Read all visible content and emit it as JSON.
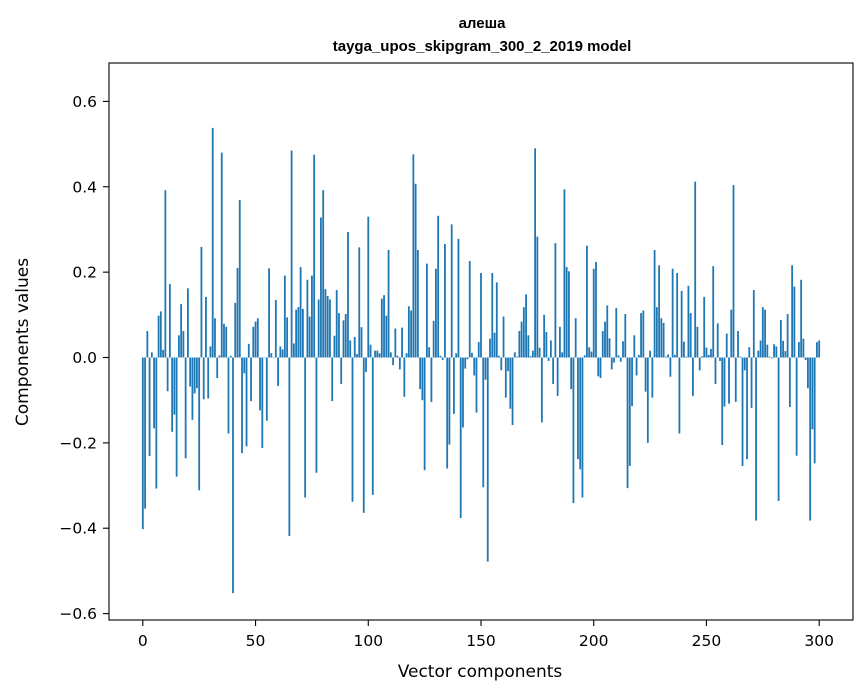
{
  "chart_data": {
    "type": "bar",
    "title": "алеша",
    "subtitle": "tayga_upos_skipgram_300_2_2019 model",
    "xlabel": "Vector components",
    "ylabel": "Components values",
    "xlim": [
      -15,
      315
    ],
    "ylim": [
      -0.615,
      0.69
    ],
    "x_ticks": [
      0,
      50,
      100,
      150,
      200,
      250,
      300
    ],
    "x_tick_labels": [
      "0",
      "50",
      "100",
      "150",
      "200",
      "250",
      "300"
    ],
    "y_ticks": [
      -0.6,
      -0.4,
      -0.2,
      0.0,
      0.2,
      0.4,
      0.6
    ],
    "y_tick_labels": [
      "−0.6",
      "−0.4",
      "−0.2",
      "0.0",
      "0.2",
      "0.4",
      "0.6"
    ],
    "grid": false,
    "color": "#1f77b4",
    "values": [
      -0.402,
      -0.354,
      0.062,
      -0.231,
      0.012,
      -0.166,
      -0.307,
      0.098,
      0.108,
      0.018,
      0.392,
      -0.079,
      0.172,
      -0.174,
      -0.134,
      -0.279,
      0.052,
      0.125,
      0.062,
      -0.236,
      0.162,
      -0.068,
      -0.146,
      -0.084,
      -0.072,
      -0.311,
      0.259,
      -0.098,
      0.142,
      -0.096,
      0.026,
      0.538,
      0.092,
      -0.048,
      0.005,
      0.48,
      0.079,
      0.072,
      -0.178,
      0.004,
      -0.552,
      0.128,
      0.21,
      0.369,
      -0.224,
      -0.037,
      -0.208,
      0.032,
      -0.102,
      0.072,
      0.084,
      0.092,
      -0.124,
      -0.212,
      0.001,
      -0.148,
      0.209,
      0.01,
      0.001,
      0.135,
      -0.067,
      0.026,
      0.019,
      0.192,
      0.094,
      -0.418,
      0.485,
      0.033,
      0.112,
      0.118,
      0.212,
      0.114,
      -0.328,
      0.182,
      0.096,
      0.192,
      0.475,
      -0.27,
      0.136,
      0.328,
      0.392,
      0.16,
      0.144,
      0.136,
      -0.102,
      0.051,
      0.158,
      0.104,
      -0.062,
      0.087,
      0.102,
      0.294,
      0.04,
      -0.338,
      0.048,
      0.008,
      0.258,
      0.071,
      -0.364,
      -0.034,
      0.33,
      0.03,
      -0.322,
      0.016,
      0.016,
      0.01,
      0.138,
      0.146,
      0.098,
      0.252,
      0.012,
      -0.018,
      0.068,
      0.004,
      -0.028,
      0.07,
      -0.092,
      0.01,
      0.12,
      0.11,
      0.476,
      0.407,
      0.252,
      -0.074,
      -0.1,
      -0.264,
      0.22,
      0.024,
      -0.104,
      0.086,
      0.208,
      0.332,
      0.004,
      -0.006,
      0.266,
      -0.26,
      -0.204,
      0.312,
      -0.132,
      0.01,
      0.278,
      -0.376,
      -0.164,
      -0.026,
      -0.004,
      0.226,
      0.011,
      -0.042,
      -0.129,
      0.036,
      0.198,
      -0.304,
      -0.052,
      -0.478,
      0.044,
      0.198,
      0.058,
      0.176,
      0.004,
      -0.03,
      0.096,
      -0.094,
      -0.032,
      -0.12,
      -0.158,
      0.012,
      0.002,
      0.062,
      0.084,
      0.118,
      0.148,
      0.052,
      0.003,
      0.016,
      0.49,
      0.283,
      0.023,
      -0.152,
      0.1,
      0.06,
      -0.008,
      0.04,
      -0.062,
      0.268,
      -0.09,
      0.072,
      0.012,
      0.394,
      0.212,
      0.202,
      -0.074,
      -0.341,
      0.092,
      -0.238,
      -0.262,
      -0.328,
      0.005,
      0.262,
      0.024,
      0.014,
      0.208,
      0.224,
      -0.044,
      -0.048,
      0.062,
      0.084,
      0.122,
      0.045,
      -0.028,
      -0.012,
      0.116,
      0.005,
      -0.01,
      0.038,
      0.102,
      -0.306,
      -0.254,
      -0.114,
      0.052,
      -0.042,
      0.006,
      0.104,
      0.11,
      -0.08,
      -0.2,
      0.016,
      -0.094,
      0.252,
      0.118,
      0.216,
      0.092,
      0.081,
      0.002,
      0.007,
      -0.045,
      0.208,
      0.006,
      0.198,
      -0.178,
      0.156,
      0.037,
      0.002,
      0.168,
      0.104,
      -0.09,
      0.412,
      0.072,
      -0.03,
      0.003,
      0.142,
      0.023,
      0.006,
      0.02,
      0.214,
      -0.062,
      0.08,
      -0.008,
      -0.205,
      -0.115,
      0.056,
      -0.108,
      0.112,
      0.404,
      -0.104,
      0.062,
      0.002,
      -0.254,
      -0.03,
      -0.238,
      0.024,
      -0.118,
      0.158,
      -0.382,
      0.016,
      0.04,
      0.118,
      0.112,
      0.03,
      0.002,
      -0.002,
      0.031,
      0.026,
      -0.336,
      0.088,
      0.039,
      0.015,
      0.102,
      -0.116,
      0.216,
      0.166,
      -0.23,
      0.036,
      0.182,
      0.044,
      -0.006,
      -0.072,
      -0.382,
      -0.168,
      -0.248,
      0.036,
      0.04
    ]
  }
}
